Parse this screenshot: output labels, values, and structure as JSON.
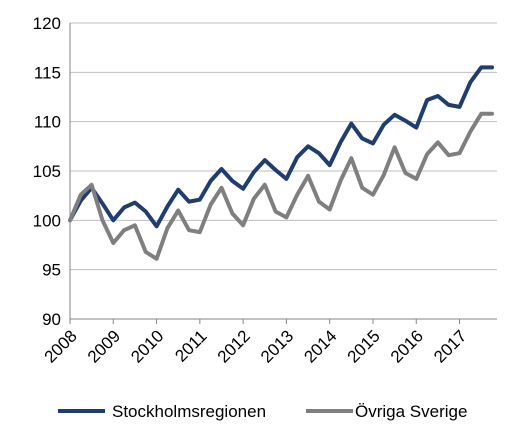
{
  "chart_data": {
    "type": "line",
    "title": "",
    "xlabel": "",
    "ylabel": "",
    "ylim": [
      90,
      120
    ],
    "yticks": [
      "90",
      "95",
      "100",
      "105",
      "110",
      "115",
      "120"
    ],
    "xticks": [
      "2008",
      "2009",
      "2010",
      "2011",
      "2012",
      "2013",
      "2014",
      "2015",
      "2016",
      "2017"
    ],
    "grid": true,
    "legend_position": "bottom",
    "x": [
      "2008Q1",
      "2008Q2",
      "2008Q3",
      "2008Q4",
      "2009Q1",
      "2009Q2",
      "2009Q3",
      "2009Q4",
      "2010Q1",
      "2010Q2",
      "2010Q3",
      "2010Q4",
      "2011Q1",
      "2011Q2",
      "2011Q3",
      "2011Q4",
      "2012Q1",
      "2012Q2",
      "2012Q3",
      "2012Q4",
      "2013Q1",
      "2013Q2",
      "2013Q3",
      "2013Q4",
      "2014Q1",
      "2014Q2",
      "2014Q3",
      "2014Q4",
      "2015Q1",
      "2015Q2",
      "2015Q3",
      "2015Q4",
      "2016Q1",
      "2016Q2",
      "2016Q3",
      "2016Q4",
      "2017Q1",
      "2017Q2",
      "2017Q3",
      "2017Q4"
    ],
    "series": [
      {
        "name": "Stockholmsregionen",
        "color": "#1f3d6e",
        "values": [
          100.0,
          102.0,
          103.3,
          101.7,
          100.0,
          101.3,
          101.8,
          100.9,
          99.4,
          101.4,
          103.1,
          101.9,
          102.1,
          104.0,
          105.2,
          104.0,
          103.2,
          104.9,
          106.1,
          105.1,
          104.2,
          106.4,
          107.5,
          106.8,
          105.6,
          107.9,
          109.8,
          108.3,
          107.8,
          109.7,
          110.7,
          110.1,
          109.4,
          112.2,
          112.6,
          111.7,
          111.5,
          114.0,
          115.5,
          115.5
        ]
      },
      {
        "name": "Övriga Sverige",
        "color": "#7f7f7f",
        "values": [
          100.0,
          102.6,
          103.6,
          100.0,
          97.7,
          99.0,
          99.5,
          96.8,
          96.1,
          99.2,
          101.0,
          99.0,
          98.8,
          101.6,
          103.3,
          100.7,
          99.5,
          102.2,
          103.6,
          100.9,
          100.3,
          102.6,
          104.5,
          101.9,
          101.1,
          104.0,
          106.3,
          103.3,
          102.6,
          104.6,
          107.4,
          104.8,
          104.2,
          106.7,
          107.9,
          106.6,
          106.8,
          109.0,
          110.8,
          110.8
        ]
      }
    ]
  }
}
